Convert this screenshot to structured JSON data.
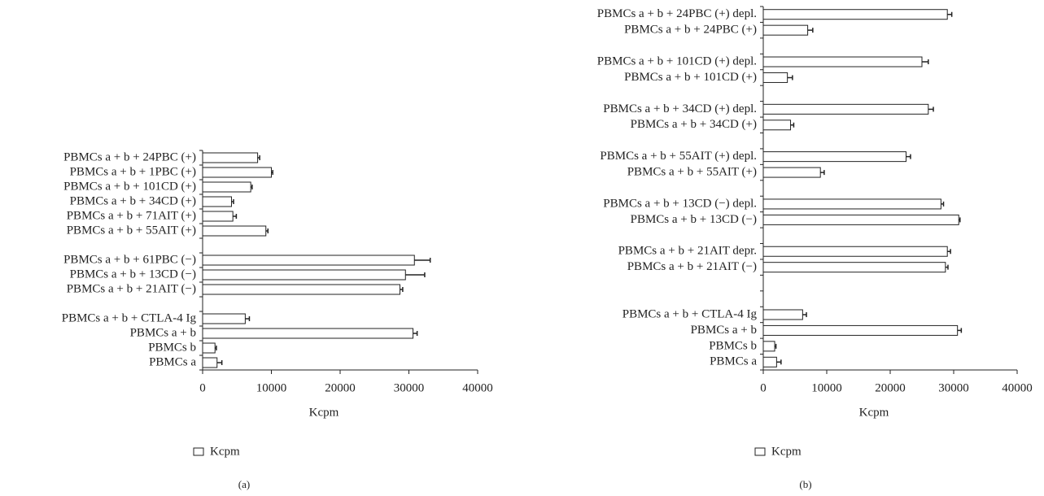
{
  "chart_data": [
    {
      "type": "bar",
      "orientation": "horizontal",
      "panel_label": "(a)",
      "x_label": "Kcpm",
      "categories": [
        "PBMCs a + b + 24PBC (+)",
        "PBMCs a + b + 1PBC (+)",
        "PBMCs a + b + 101CD (+)",
        "PBMCs a + b + 34CD (+)",
        "PBMCs a + b + 71AIT (+)",
        "PBMCs a + b + 55AIT (+)",
        null,
        "PBMCs a + b + 61PBC (−)",
        "PBMCs a + b + 13CD (−)",
        "PBMCs a + b + 21AIT (−)",
        null,
        "PBMCs a + b + CTLA-4 Ig",
        "PBMCs a + b",
        "PBMCs b",
        "PBMCs a"
      ],
      "series": [
        {
          "name": "Kcpm",
          "color": "#ffffff",
          "values": [
            8000,
            10000,
            7000,
            4200,
            4400,
            9200,
            null,
            30800,
            29500,
            28700,
            null,
            6200,
            30600,
            1800,
            2100
          ],
          "errors": [
            300,
            200,
            200,
            300,
            500,
            300,
            null,
            2300,
            2800,
            400,
            null,
            600,
            600,
            200,
            700
          ]
        }
      ],
      "xlim": [
        0,
        40000
      ],
      "xticks": [
        0,
        10000,
        20000,
        30000,
        40000
      ],
      "legend": "bottom-left"
    },
    {
      "type": "bar",
      "orientation": "horizontal",
      "panel_label": "(b)",
      "x_label": "Kcpm",
      "categories": [
        "PBMCs a + b + 24PBC (+) depl.",
        "PBMCs a + b + 24PBC (+)",
        null,
        "PBMCs a + b + 101CD (+) depl.",
        "PBMCs a + b + 101CD (+)",
        null,
        "PBMCs a + b + 34CD (+) depl.",
        "PBMCs a + b + 34CD (+)",
        null,
        "PBMCs a + b + 55AIT (+) depl.",
        "PBMCs a + b + 55AIT (+)",
        null,
        "PBMCs a + b + 13CD (−) depl.",
        "PBMCs a + b + 13CD (−)",
        null,
        "PBMCs a + b + 21AIT depr.",
        "PBMCs a + b + 21AIT (−)",
        null,
        null,
        "PBMCs a + b + CTLA-4 Ig",
        "PBMCs a + b",
        "PBMCs b",
        "PBMCs a"
      ],
      "series": [
        {
          "name": "Kcpm",
          "color": "#ffffff",
          "values": [
            29000,
            7000,
            null,
            25000,
            3800,
            null,
            26000,
            4300,
            null,
            22500,
            9000,
            null,
            28000,
            30800,
            null,
            29000,
            28700,
            null,
            null,
            6200,
            30600,
            1800,
            2100
          ],
          "errors": [
            700,
            800,
            null,
            1000,
            800,
            null,
            800,
            500,
            null,
            700,
            600,
            null,
            400,
            200,
            null,
            500,
            400,
            null,
            null,
            600,
            600,
            200,
            700
          ]
        }
      ],
      "xlim": [
        0,
        40000
      ],
      "xticks": [
        0,
        10000,
        20000,
        30000,
        40000
      ],
      "legend": "bottom-left"
    }
  ]
}
